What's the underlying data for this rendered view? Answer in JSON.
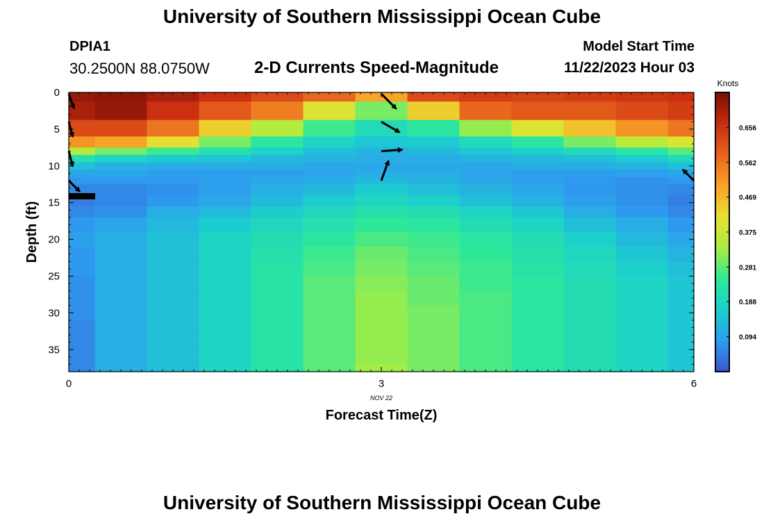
{
  "header": {
    "title": "University of Southern Mississippi Ocean Cube",
    "station_id": "DPIA1",
    "coordinates": "30.2500N  88.0750W",
    "plot_title": "2-D Currents Speed-Magnitude",
    "model_start_label": "Model Start Time",
    "model_start_value": "11/22/2023 Hour 03"
  },
  "footer": {
    "title": "University of Southern Mississippi Ocean Cube"
  },
  "chart_data": {
    "type": "heatmap",
    "title": "2-D Currents Speed-Magnitude",
    "xlabel": "Forecast Time(Z)",
    "ylabel": "Depth (ft)",
    "x_date_label": "NOV 22",
    "xlim": [
      0,
      6
    ],
    "ylim": [
      38,
      0
    ],
    "x_ticks": [
      0,
      3,
      6
    ],
    "y_ticks": [
      0,
      5,
      10,
      15,
      20,
      25,
      30,
      35
    ],
    "colorbar": {
      "label": "Knots",
      "range": [
        0.0,
        0.75
      ],
      "ticks": [
        0.094,
        0.188,
        0.281,
        0.375,
        0.469,
        0.562,
        0.656
      ],
      "colormap": [
        "#3a55cc",
        "#2e9cf0",
        "#1bd0cc",
        "#2ee89a",
        "#a8ee40",
        "#e8e030",
        "#f8a428",
        "#e8641c",
        "#c82c10",
        "#7a1005"
      ]
    },
    "time_centers": [
      0,
      0.5,
      1,
      1.5,
      2,
      2.5,
      3,
      3.5,
      4,
      4.5,
      5,
      5.5,
      6
    ],
    "depth_levels": [
      0,
      2.5,
      5,
      7,
      8,
      9,
      10,
      11,
      12,
      13,
      15,
      16,
      18,
      20,
      22,
      24,
      26,
      28,
      30,
      32,
      34,
      36,
      38
    ],
    "speed_profiles": [
      [
        0.72,
        0.7,
        0.62,
        0.52,
        0.35,
        0.22,
        0.14,
        0.1,
        0.08,
        0.06,
        0.05,
        0.06,
        0.08,
        0.09,
        0.08,
        0.08,
        0.07,
        0.07,
        0.07,
        0.06,
        0.06,
        0.06,
        0.06
      ],
      [
        0.73,
        0.72,
        0.62,
        0.5,
        0.3,
        0.18,
        0.12,
        0.1,
        0.08,
        0.06,
        0.06,
        0.07,
        0.1,
        0.11,
        0.11,
        0.11,
        0.11,
        0.11,
        0.11,
        0.11,
        0.11,
        0.11,
        0.11
      ],
      [
        0.7,
        0.66,
        0.56,
        0.42,
        0.26,
        0.16,
        0.11,
        0.09,
        0.08,
        0.07,
        0.08,
        0.11,
        0.13,
        0.14,
        0.14,
        0.14,
        0.14,
        0.14,
        0.14,
        0.14,
        0.14,
        0.14,
        0.14
      ],
      [
        0.66,
        0.6,
        0.44,
        0.3,
        0.22,
        0.15,
        0.11,
        0.09,
        0.09,
        0.09,
        0.1,
        0.13,
        0.16,
        0.18,
        0.18,
        0.18,
        0.18,
        0.18,
        0.18,
        0.18,
        0.18,
        0.18,
        0.18
      ],
      [
        0.62,
        0.55,
        0.35,
        0.24,
        0.18,
        0.13,
        0.11,
        0.09,
        0.1,
        0.11,
        0.13,
        0.16,
        0.19,
        0.21,
        0.22,
        0.23,
        0.23,
        0.23,
        0.23,
        0.23,
        0.23,
        0.23,
        0.23
      ],
      [
        0.58,
        0.4,
        0.26,
        0.18,
        0.14,
        0.12,
        0.1,
        0.1,
        0.11,
        0.13,
        0.16,
        0.19,
        0.22,
        0.24,
        0.26,
        0.27,
        0.28,
        0.28,
        0.28,
        0.28,
        0.28,
        0.28,
        0.28
      ],
      [
        0.5,
        0.3,
        0.2,
        0.15,
        0.12,
        0.11,
        0.1,
        0.11,
        0.13,
        0.16,
        0.19,
        0.22,
        0.25,
        0.27,
        0.29,
        0.3,
        0.31,
        0.32,
        0.32,
        0.32,
        0.32,
        0.32,
        0.33
      ],
      [
        0.62,
        0.44,
        0.24,
        0.16,
        0.13,
        0.11,
        0.1,
        0.11,
        0.12,
        0.14,
        0.17,
        0.21,
        0.24,
        0.26,
        0.27,
        0.28,
        0.29,
        0.29,
        0.3,
        0.3,
        0.3,
        0.3,
        0.3
      ],
      [
        0.64,
        0.58,
        0.32,
        0.2,
        0.15,
        0.12,
        0.1,
        0.1,
        0.1,
        0.12,
        0.14,
        0.18,
        0.21,
        0.24,
        0.25,
        0.26,
        0.26,
        0.27,
        0.27,
        0.27,
        0.27,
        0.27,
        0.27
      ],
      [
        0.63,
        0.6,
        0.4,
        0.24,
        0.17,
        0.13,
        0.11,
        0.09,
        0.09,
        0.1,
        0.12,
        0.15,
        0.18,
        0.21,
        0.22,
        0.23,
        0.24,
        0.24,
        0.24,
        0.24,
        0.24,
        0.24,
        0.24
      ],
      [
        0.64,
        0.6,
        0.46,
        0.3,
        0.2,
        0.14,
        0.11,
        0.09,
        0.08,
        0.08,
        0.09,
        0.11,
        0.14,
        0.17,
        0.19,
        0.2,
        0.21,
        0.21,
        0.21,
        0.21,
        0.21,
        0.21,
        0.21
      ],
      [
        0.65,
        0.62,
        0.52,
        0.36,
        0.24,
        0.16,
        0.12,
        0.09,
        0.07,
        0.07,
        0.07,
        0.08,
        0.11,
        0.13,
        0.15,
        0.17,
        0.18,
        0.18,
        0.18,
        0.18,
        0.18,
        0.18,
        0.18
      ],
      [
        0.66,
        0.64,
        0.56,
        0.4,
        0.28,
        0.2,
        0.14,
        0.1,
        0.08,
        0.06,
        0.05,
        0.06,
        0.08,
        0.1,
        0.12,
        0.14,
        0.15,
        0.15,
        0.15,
        0.15,
        0.15,
        0.15,
        0.15
      ]
    ],
    "vectors": [
      {
        "t": 0,
        "depth": 0.2,
        "dir_deg": 160,
        "len": 0.55
      },
      {
        "t": 0,
        "depth": 4.0,
        "dir_deg": 165,
        "len": 0.55
      },
      {
        "t": 0,
        "depth": 8.0,
        "dir_deg": 165,
        "len": 0.55
      },
      {
        "t": 0,
        "depth": 12.0,
        "dir_deg": 135,
        "len": 0.55
      },
      {
        "t": 3,
        "depth": 0.2,
        "dir_deg": 135,
        "len": 0.75
      },
      {
        "t": 3,
        "depth": 4.0,
        "dir_deg": 120,
        "len": 0.75
      },
      {
        "t": 3,
        "depth": 8.0,
        "dir_deg": 86,
        "len": 0.75
      },
      {
        "t": 3,
        "depth": 12.0,
        "dir_deg": 20,
        "len": 0.75
      },
      {
        "t": 6,
        "depth": 12.0,
        "dir_deg": 315,
        "len": 0.55
      }
    ],
    "grid": false
  }
}
